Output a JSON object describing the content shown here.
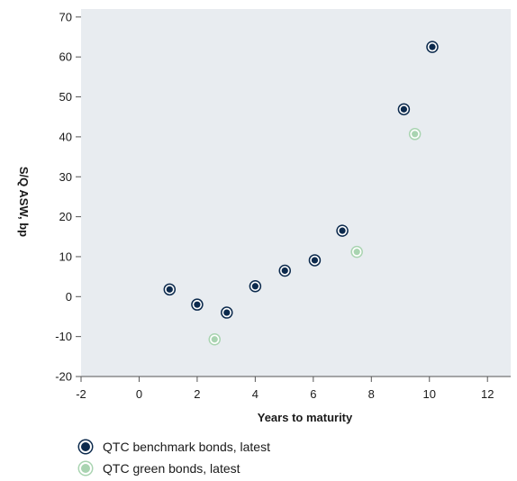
{
  "chart_data": {
    "type": "scatter",
    "title": "",
    "xlabel": "Years to maturity",
    "ylabel": "S/Q ASW, bp",
    "xlim": [
      -2,
      12.8
    ],
    "ylim": [
      -20,
      72
    ],
    "xticks": [
      -2,
      0,
      2,
      4,
      6,
      8,
      10,
      12
    ],
    "yticks": [
      -20,
      -10,
      0,
      10,
      20,
      30,
      40,
      50,
      60,
      70
    ],
    "grid": false,
    "background": "#e8ecf0",
    "legend_position": "bottom-left",
    "series": [
      {
        "name": "QTC benchmark bonds, latest",
        "color": "#0c2a4d",
        "points": [
          {
            "x": 1.05,
            "y": 1.8
          },
          {
            "x": 2.0,
            "y": -2.0
          },
          {
            "x": 3.02,
            "y": -4.0
          },
          {
            "x": 4.0,
            "y": 2.6
          },
          {
            "x": 5.02,
            "y": 6.5
          },
          {
            "x": 6.05,
            "y": 9.1
          },
          {
            "x": 7.0,
            "y": 16.5
          },
          {
            "x": 9.12,
            "y": 46.9
          },
          {
            "x": 10.1,
            "y": 62.5
          }
        ]
      },
      {
        "name": "QTC green bonds, latest",
        "color": "#a9d4b1",
        "points": [
          {
            "x": 2.6,
            "y": -10.7
          },
          {
            "x": 7.5,
            "y": 11.2
          },
          {
            "x": 9.5,
            "y": 40.7
          }
        ]
      }
    ]
  }
}
